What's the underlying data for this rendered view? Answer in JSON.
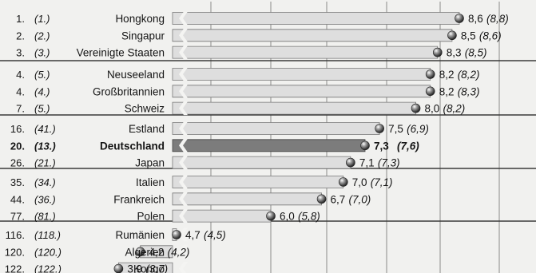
{
  "chart_data": {
    "type": "bar",
    "value_decimal_separator": ",",
    "groups": [
      {
        "rows": [
          {
            "rank": "1.",
            "prev_rank": "(1.)",
            "country": "Hongkong",
            "value": 8.6,
            "value_label": "8,6",
            "prev_value": 8.8,
            "prev_label": "(8,8)"
          },
          {
            "rank": "2.",
            "prev_rank": "(2.)",
            "country": "Singapur",
            "value": 8.5,
            "value_label": "8,5",
            "prev_value": 8.6,
            "prev_label": "(8,6)"
          },
          {
            "rank": "3.",
            "prev_rank": "(3.)",
            "country": "Vereinigte Staaten",
            "value": 8.3,
            "value_label": "8,3",
            "prev_value": 8.5,
            "prev_label": "(8,5)"
          }
        ]
      },
      {
        "rows": [
          {
            "rank": "4.",
            "prev_rank": "(5.)",
            "country": "Neuseeland",
            "value": 8.2,
            "value_label": "8,2",
            "prev_value": 8.2,
            "prev_label": "(8,2)"
          },
          {
            "rank": "4.",
            "prev_rank": "(4.)",
            "country": "Großbritannien",
            "value": 8.2,
            "value_label": "8,2",
            "prev_value": 8.3,
            "prev_label": "(8,3)"
          },
          {
            "rank": "7.",
            "prev_rank": "(5.)",
            "country": "Schweiz",
            "value": 8.0,
            "value_label": "8,0",
            "prev_value": 8.2,
            "prev_label": "(8,2)"
          }
        ]
      },
      {
        "rows": [
          {
            "rank": "16.",
            "prev_rank": "(41.)",
            "country": "Estland",
            "value": 7.5,
            "value_label": "7,5",
            "prev_value": 6.9,
            "prev_label": "(6,9)"
          },
          {
            "rank": "20.",
            "prev_rank": "(13.)",
            "country": "Deutschland",
            "value": 7.3,
            "value_label": "7,3",
            "prev_value": 7.6,
            "prev_label": "(7,6)",
            "highlight": true
          },
          {
            "rank": "26.",
            "prev_rank": "(21.)",
            "country": "Japan",
            "value": 7.1,
            "value_label": "7,1",
            "prev_value": 7.3,
            "prev_label": "(7,3)"
          }
        ]
      },
      {
        "rows": [
          {
            "rank": "35.",
            "prev_rank": "(34.)",
            "country": "Italien",
            "value": 7.0,
            "value_label": "7,0",
            "prev_value": 7.1,
            "prev_label": "(7,1)"
          },
          {
            "rank": "44.",
            "prev_rank": "(36.)",
            "country": "Frankreich",
            "value": 6.7,
            "value_label": "6,7",
            "prev_value": 7.0,
            "prev_label": "(7,0)"
          },
          {
            "rank": "77.",
            "prev_rank": "(81.)",
            "country": "Polen",
            "value": 6.0,
            "value_label": "6,0",
            "prev_value": 5.8,
            "prev_label": "(5,8)"
          }
        ]
      },
      {
        "rows": [
          {
            "rank": "116.",
            "prev_rank": "(118.)",
            "country": "Rumänien",
            "value": 4.7,
            "value_label": "4,7",
            "prev_value": 4.5,
            "prev_label": "(4,5)"
          },
          {
            "rank": "120.",
            "prev_rank": "(120.)",
            "country": "Algerien",
            "value": 4.2,
            "value_label": "4,2",
            "prev_value": 4.2,
            "prev_label": "(4,2)"
          },
          {
            "rank": "122.",
            "prev_rank": "(122.)",
            "country": "Kongo",
            "value": 3.9,
            "value_label": "3,9",
            "prev_value": 3.7,
            "prev_label": "(3,7)"
          }
        ]
      }
    ],
    "xlim": [
      3,
      10
    ],
    "grid": true,
    "colors": {
      "bar": "#dedede",
      "bar_highlight": "#7c7c7c",
      "grid": "#8a8a8a",
      "dot": "#4a4a4a"
    }
  }
}
